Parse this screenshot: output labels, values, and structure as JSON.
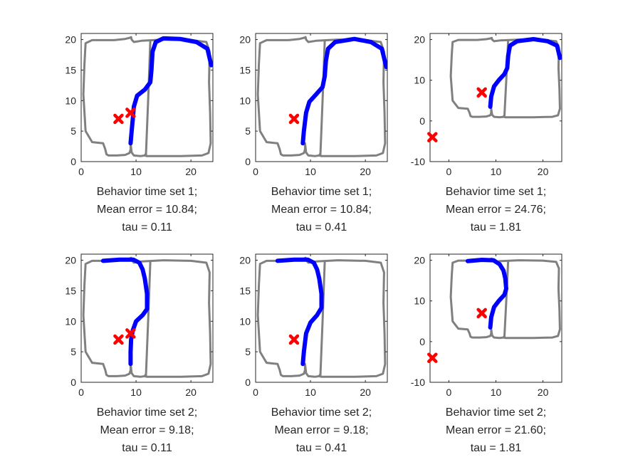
{
  "chart_data": [
    {
      "type": "line",
      "xlim": [
        0,
        24
      ],
      "ylim": [
        0,
        21
      ],
      "xticks": [
        0,
        10,
        20
      ],
      "yticks": [
        0,
        5,
        10,
        15,
        20
      ],
      "xlabel": [
        "Behavior time set 1;",
        "Mean error = 10.84;",
        "tau = 0.11"
      ],
      "trajectory": {
        "x": [
          9,
          9.2,
          9.4,
          9.6,
          10.2,
          11.6,
          12.6,
          12.8,
          13,
          13.6,
          15,
          18,
          21,
          23,
          23.7
        ],
        "y": [
          3,
          5,
          7,
          9,
          10.8,
          11.8,
          13,
          15,
          18,
          19.6,
          20.2,
          20.1,
          19.6,
          18.5,
          15.8
        ]
      },
      "markers": [
        {
          "x": 9,
          "y": 8
        },
        {
          "x": 6.8,
          "y": 7
        }
      ]
    },
    {
      "type": "line",
      "xlim": [
        0,
        24
      ],
      "ylim": [
        0,
        21
      ],
      "xticks": [
        0,
        10,
        20
      ],
      "yticks": [
        0,
        5,
        10,
        15,
        20
      ],
      "xlabel": [
        "Behavior time set 1;",
        "Mean error = 10.84;",
        "tau = 0.41"
      ],
      "trajectory": {
        "x": [
          8.6,
          8.8,
          9.2,
          9.8,
          11,
          12.2,
          12.6,
          12.8,
          13.2,
          14.5,
          18,
          21,
          23,
          23.8
        ],
        "y": [
          3,
          5,
          8,
          9.8,
          11,
          12.2,
          14,
          16.5,
          18.5,
          19.6,
          20.1,
          19.6,
          18.5,
          15.5
        ]
      },
      "markers": [
        {
          "x": 7,
          "y": 7
        }
      ]
    },
    {
      "type": "line",
      "xlim": [
        -4,
        24
      ],
      "ylim": [
        -10,
        21.5
      ],
      "xticks": [
        0,
        10,
        20
      ],
      "yticks": [
        -10,
        0,
        10,
        20
      ],
      "xlabel": [
        "Behavior time set 1;",
        "Mean error = 24.76;",
        "tau = 1.81"
      ],
      "trajectory": {
        "x": [
          8.8,
          9,
          9.6,
          10.6,
          11.8,
          12.4,
          12.6,
          13,
          14.5,
          18,
          21,
          23,
          23.6
        ],
        "y": [
          3.5,
          6,
          8.5,
          10,
          11.5,
          13,
          16,
          18.5,
          19.6,
          20.1,
          19.6,
          18.5,
          15.5
        ]
      },
      "markers": [
        {
          "x": 7,
          "y": 7
        },
        {
          "x": -3.5,
          "y": -4
        }
      ]
    },
    {
      "type": "line",
      "xlim": [
        0,
        24
      ],
      "ylim": [
        0,
        21
      ],
      "xticks": [
        0,
        10,
        20
      ],
      "yticks": [
        0,
        5,
        10,
        15,
        20
      ],
      "xlabel": [
        "Behavior time set 2;",
        "Mean error = 9.18;",
        "tau = 0.11"
      ],
      "trajectory": {
        "x": [
          9,
          9,
          9.1,
          9.4,
          10,
          11.2,
          12,
          12,
          11.6,
          11.2,
          10.6,
          9.5,
          7,
          4
        ],
        "y": [
          3,
          5,
          7,
          8.5,
          10,
          11,
          12,
          14.5,
          17,
          18.5,
          19.6,
          20.1,
          20.1,
          19.9
        ]
      },
      "markers": [
        {
          "x": 9,
          "y": 8
        },
        {
          "x": 6.8,
          "y": 7
        }
      ]
    },
    {
      "type": "line",
      "xlim": [
        0,
        24
      ],
      "ylim": [
        0,
        21
      ],
      "xticks": [
        0,
        10,
        20
      ],
      "yticks": [
        0,
        5,
        10,
        15,
        20
      ],
      "xlabel": [
        "Behavior time set 2;",
        "Mean error = 9.18;",
        "tau = 0.41"
      ],
      "trajectory": {
        "x": [
          8.6,
          8.8,
          9.2,
          10,
          11.2,
          12,
          12,
          11.6,
          11.2,
          10.6,
          9.5,
          7,
          4
        ],
        "y": [
          3,
          5,
          8,
          9.8,
          11,
          12.2,
          14.5,
          17,
          18.5,
          19.6,
          20.1,
          20.1,
          19.9
        ]
      },
      "markers": [
        {
          "x": 7,
          "y": 7
        }
      ]
    },
    {
      "type": "line",
      "xlim": [
        -4,
        24
      ],
      "ylim": [
        -10,
        21.5
      ],
      "xticks": [
        0,
        10,
        20
      ],
      "yticks": [
        -10,
        0,
        10,
        20
      ],
      "xlabel": [
        "Behavior time set 2;",
        "Mean error = 21.60;",
        "tau = 1.81"
      ],
      "trajectory": {
        "x": [
          8.8,
          9,
          9.6,
          10.6,
          11.8,
          12.2,
          12,
          11.6,
          10.8,
          9.5,
          7,
          4
        ],
        "y": [
          3.5,
          6,
          8.5,
          10,
          11.5,
          13,
          15.5,
          17.5,
          19,
          20,
          20.1,
          19.8
        ]
      },
      "markers": [
        {
          "x": 7,
          "y": 7
        },
        {
          "x": -3.5,
          "y": -4
        }
      ]
    }
  ],
  "track": {
    "x": [
      4,
      4.4,
      4.6,
      5,
      6.5,
      8,
      8.8,
      9,
      9,
      9.2,
      9.6,
      10.8,
      11.6,
      11.7,
      11.6,
      12,
      14,
      18,
      22,
      23.2,
      23.6,
      23.5,
      23.3,
      23.4,
      22.8,
      20,
      15,
      11,
      9.6,
      9.2,
      9.1,
      8.9,
      8,
      6,
      2,
      0.8,
      0.6,
      0.4,
      0.8,
      2
    ],
    "y": [
      3,
      2,
      1.2,
      1,
      1,
      1.1,
      1.4,
      2,
      3,
      1.5,
      1,
      0.9,
      1,
      1.2,
      1,
      0.9,
      0.9,
      0.9,
      1,
      1.4,
      3,
      8,
      13,
      18,
      19.6,
      19.9,
      20,
      19.8,
      19.6,
      20,
      20.4,
      20.3,
      20.1,
      19.9,
      19.9,
      19.4,
      16,
      11,
      5,
      3.2
    ]
  },
  "colors": {
    "track": "#808080",
    "trajectory": "#0000ff",
    "marker": "#ff0000",
    "axis": "#262626"
  },
  "icons": {
    "marker": "x-mark-icon"
  }
}
